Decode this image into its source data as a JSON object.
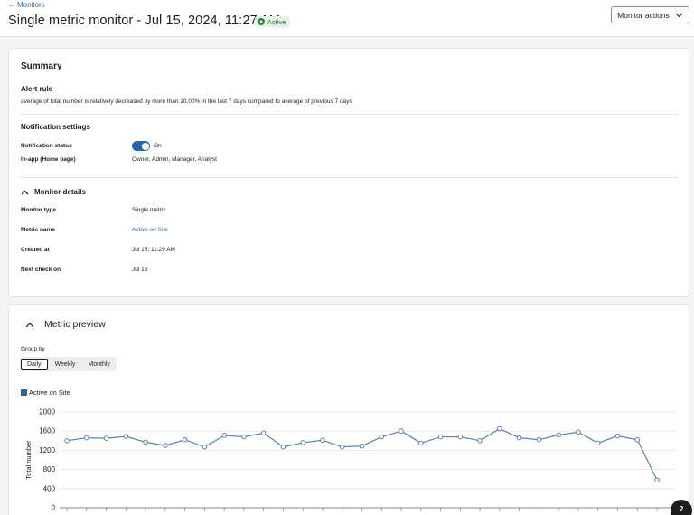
{
  "header": {
    "back_label": "Monitors",
    "title": "Single metric monitor - Jul 15, 2024, 11:27 AM",
    "status": "Active",
    "actions_label": "Monitor actions"
  },
  "summary": {
    "title": "Summary",
    "alert_rule": {
      "heading": "Alert rule",
      "text": "average of total number is relatively decreased by more than 20.00% in the last 7 days compared to average of previous 7 days"
    },
    "notification": {
      "heading": "Notification settings",
      "status_label": "Notification status",
      "status_value": "On",
      "inapp_label": "In-app (Home page)",
      "inapp_value": "Owner, Admin, Manager, Analyst"
    },
    "details": {
      "heading": "Monitor details",
      "rows": [
        {
          "label": "Monitor type",
          "value": "Single metric"
        },
        {
          "label": "Metric name",
          "value": "Active on Site"
        },
        {
          "label": "Created at",
          "value": "Jul 15, 11:29 AM"
        },
        {
          "label": "Next check on",
          "value": "Jul 16"
        }
      ]
    }
  },
  "preview": {
    "title": "Metric preview",
    "group_by_label": "Group by",
    "options": [
      "Daily",
      "Weekly",
      "Monthly"
    ],
    "selected": "Daily",
    "legend": "Active on Site"
  },
  "help_label": "?",
  "colors": {
    "accent": "#2c63a6",
    "line": "#5b82ad",
    "status_green": "#2a8a3a"
  },
  "chart_data": {
    "type": "line",
    "ylabel": "Total number",
    "ylim": [
      0,
      2000
    ],
    "yticks": [
      0,
      400,
      800,
      1200,
      1600,
      2000
    ],
    "grid": true,
    "series": [
      {
        "name": "Active on Site",
        "values": [
          1400,
          1460,
          1450,
          1490,
          1370,
          1300,
          1420,
          1270,
          1510,
          1480,
          1560,
          1270,
          1360,
          1410,
          1270,
          1290,
          1480,
          1600,
          1350,
          1480,
          1480,
          1400,
          1650,
          1460,
          1420,
          1520,
          1580,
          1350,
          1500,
          1420,
          580
        ]
      }
    ]
  }
}
